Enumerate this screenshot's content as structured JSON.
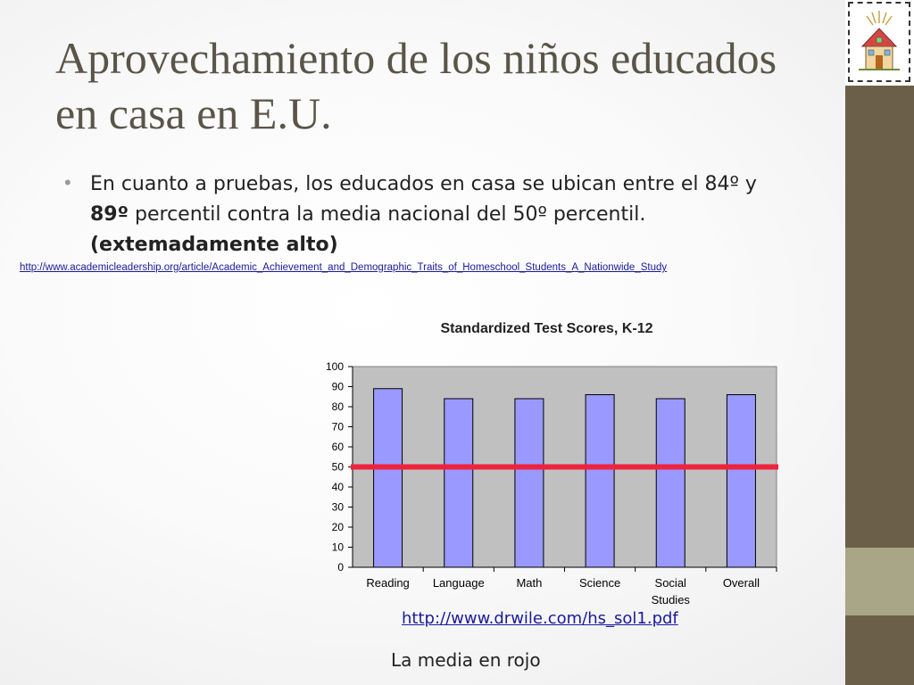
{
  "slide": {
    "title": "Aprovechamiento de los niños educados en casa en E.U.",
    "bullet": {
      "pre": "En cuanto a pruebas, los educados en casa se ubican entre el 84º y ",
      "bold_value": "89º",
      "post": " percentil contra la media nacional del 50º percentil.",
      "bold_tail": "(extemadamente alto)"
    },
    "source_link": "http://www.academicleadership.org/article/Academic_Achievement_and_Demographic_Traits_of_Homeschool_Students_A_Nationwide_Study",
    "chart_link": "http://www.drwile.com/hs_sol1.pdf",
    "caption": "La media en rojo",
    "logo_icon": "schoolhouse-icon"
  },
  "chart_data": {
    "type": "bar",
    "title": "Standardized Test Scores, K-12",
    "categories": [
      "Reading",
      "Language",
      "Math",
      "Science",
      "Social\nStudies",
      "Overall"
    ],
    "values": [
      89,
      84,
      84,
      86,
      84,
      86
    ],
    "ylim": [
      0,
      100
    ],
    "yticks": [
      0,
      10,
      20,
      30,
      40,
      50,
      60,
      70,
      80,
      90,
      100
    ],
    "reference_line": {
      "value": 50,
      "color": "#f0223d"
    },
    "bar_color": "#9999ff",
    "plot_background": "#c0c0c0",
    "grid": false,
    "xlabel": "",
    "ylabel": ""
  }
}
